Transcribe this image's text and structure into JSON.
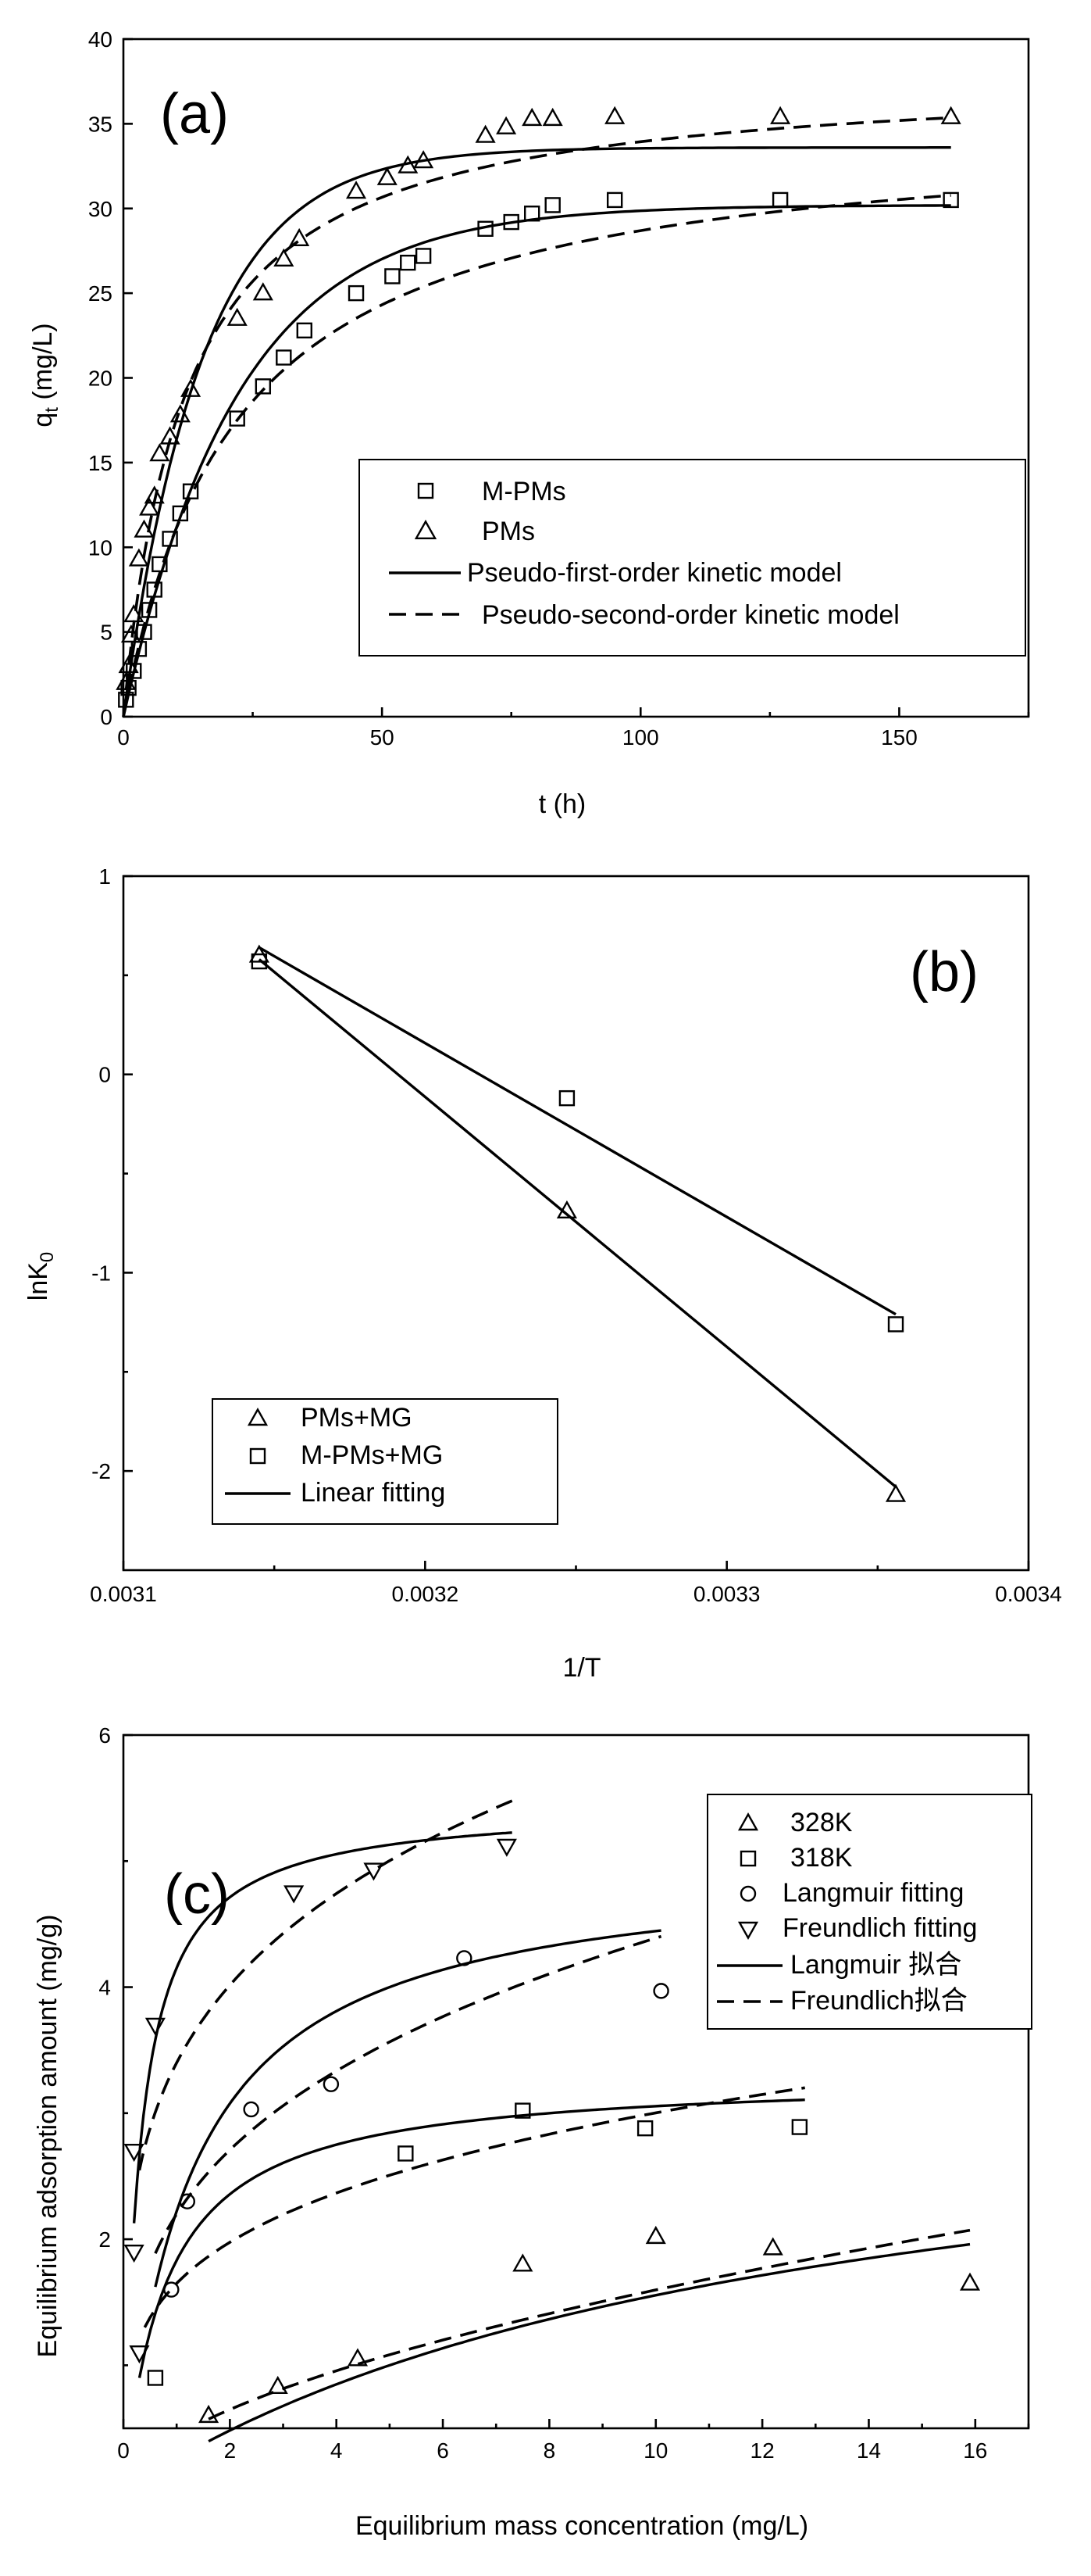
{
  "chart_data": [
    {
      "type": "scatter",
      "panel_label": "(a)",
      "xlabel": "t (h)",
      "ylabel": "q_t (mg/L)",
      "ylabel_main": "q",
      "ylabel_sub": "t",
      "ylabel_rest": " (mg/L)",
      "xlim": [
        0,
        175
      ],
      "ylim": [
        0,
        40
      ],
      "xticks": [
        0,
        50,
        100,
        150
      ],
      "yticks": [
        0,
        5,
        10,
        15,
        20,
        25,
        30,
        35,
        40
      ],
      "legend_position": "center-right",
      "series": [
        {
          "name": "M-PMs",
          "marker": "square",
          "points": [
            [
              0.5,
              1
            ],
            [
              1,
              1.7
            ],
            [
              2,
              2.7
            ],
            [
              3,
              4
            ],
            [
              4,
              5
            ],
            [
              5,
              6.3
            ],
            [
              6,
              7.5
            ],
            [
              7,
              9
            ],
            [
              9,
              10.5
            ],
            [
              11,
              12
            ],
            [
              13,
              13.3
            ],
            [
              22,
              17.6
            ],
            [
              27,
              19.5
            ],
            [
              31,
              21.2
            ],
            [
              35,
              22.8
            ],
            [
              45,
              25
            ],
            [
              52,
              26
            ],
            [
              55,
              26.8
            ],
            [
              58,
              27.2
            ],
            [
              70,
              28.8
            ],
            [
              75,
              29.2
            ],
            [
              79,
              29.7
            ],
            [
              83,
              30.2
            ],
            [
              95,
              30.5
            ],
            [
              127,
              30.5
            ],
            [
              160,
              30.5
            ]
          ]
        },
        {
          "name": "PMs",
          "marker": "triangle",
          "points": [
            [
              0.5,
              2
            ],
            [
              1,
              3
            ],
            [
              1.5,
              4.8
            ],
            [
              2,
              6
            ],
            [
              3,
              9.3
            ],
            [
              4,
              11
            ],
            [
              5,
              12.3
            ],
            [
              6,
              13
            ],
            [
              7,
              15.5
            ],
            [
              9,
              16.5
            ],
            [
              11,
              17.8
            ],
            [
              13,
              19.3
            ],
            [
              22,
              23.5
            ],
            [
              27,
              25
            ],
            [
              31,
              27
            ],
            [
              34,
              28.2
            ],
            [
              45,
              31
            ],
            [
              51,
              31.8
            ],
            [
              55,
              32.5
            ],
            [
              58,
              32.8
            ],
            [
              70,
              34.3
            ],
            [
              74,
              34.8
            ],
            [
              79,
              35.3
            ],
            [
              83,
              35.3
            ],
            [
              95,
              35.4
            ],
            [
              127,
              35.4
            ],
            [
              160,
              35.4
            ]
          ]
        },
        {
          "name": "Pseudo-first-order kinetic model",
          "style": "solid",
          "fits": [
            {
              "qe": 33.6,
              "k": 0.065
            },
            {
              "qe": 30.2,
              "k": 0.045
            }
          ]
        },
        {
          "name": "Pseudo-second-order kinetic model",
          "style": "dashed",
          "fits": [
            {
              "qe": 38.0,
              "k2": 0.0022
            },
            {
              "qe": 35.0,
              "k2": 0.0013
            }
          ]
        }
      ]
    },
    {
      "type": "scatter",
      "panel_label": "(b)",
      "xlabel": "1/T",
      "ylabel": "lnK_0",
      "ylabel_main": "lnK",
      "ylabel_sub": "0",
      "xlim": [
        0.0031,
        0.0034
      ],
      "ylim": [
        -2.5,
        1
      ],
      "xticks": [
        "0.0031",
        "0.0032",
        "0.0033",
        "0.0034"
      ],
      "yticks": [
        -2,
        -1,
        0,
        1
      ],
      "legend_position": "bottom-left",
      "series": [
        {
          "name": "PMs+MG",
          "marker": "triangle",
          "points": [
            [
              0.003145,
              0.6
            ],
            [
              0.003247,
              -0.69
            ],
            [
              0.003356,
              -2.12
            ]
          ]
        },
        {
          "name": "M-PMs+MG",
          "marker": "square",
          "points": [
            [
              0.003145,
              0.57
            ],
            [
              0.003247,
              -0.12
            ],
            [
              0.003356,
              -1.26
            ]
          ]
        },
        {
          "name": "Linear fitting",
          "style": "solid",
          "lines": [
            [
              [
                0.003145,
                0.58
              ],
              [
                0.003356,
                -2.08
              ]
            ],
            [
              [
                0.003145,
                0.64
              ],
              [
                0.003356,
                -1.21
              ]
            ]
          ]
        }
      ]
    },
    {
      "type": "scatter",
      "panel_label": "(c)",
      "xlabel": "Equilibrium mass concentration (mg/L)",
      "ylabel": "Equilibrium adsorption amount (mg/g)",
      "xlim": [
        0,
        17
      ],
      "ylim": [
        0.5,
        6
      ],
      "xticks": [
        0,
        2,
        4,
        6,
        8,
        10,
        12,
        14,
        16
      ],
      "yticks": [
        2,
        4,
        6
      ],
      "legend_position": "top-right",
      "series": [
        {
          "name": "328K",
          "marker": "triangle",
          "points": [
            [
              1.6,
              0.6
            ],
            [
              2.9,
              0.83
            ],
            [
              4.4,
              1.05
            ],
            [
              7.5,
              1.8
            ],
            [
              10,
              2.02
            ],
            [
              12.2,
              1.93
            ],
            [
              15.9,
              1.65
            ]
          ]
        },
        {
          "name": "318K",
          "marker": "square",
          "points": [
            [
              0.6,
              0.9
            ],
            [
              5.3,
              2.68
            ],
            [
              7.5,
              3.02
            ],
            [
              9.8,
              2.88
            ],
            [
              12.7,
              2.89
            ]
          ]
        },
        {
          "name": "Langmuir fitting",
          "marker": "circle",
          "points": [
            [
              0.9,
              1.6
            ],
            [
              1.2,
              2.3
            ],
            [
              2.4,
              3.03
            ],
            [
              3.9,
              3.23
            ],
            [
              6.4,
              4.23
            ],
            [
              10.1,
              3.97
            ]
          ]
        },
        {
          "name": "Freundlich fitting",
          "marker": "triangle-down",
          "points": [
            [
              0.2,
              2.7
            ],
            [
              0.2,
              1.9
            ],
            [
              0.3,
              1.1
            ],
            [
              0.6,
              3.7
            ],
            [
              3.2,
              4.75
            ],
            [
              4.7,
              4.93
            ],
            [
              7.2,
              5.12
            ]
          ]
        },
        {
          "name": "Langmuir 拟合",
          "style": "solid"
        },
        {
          "name": "Freundlich拟合",
          "style": "dashed"
        }
      ]
    }
  ]
}
